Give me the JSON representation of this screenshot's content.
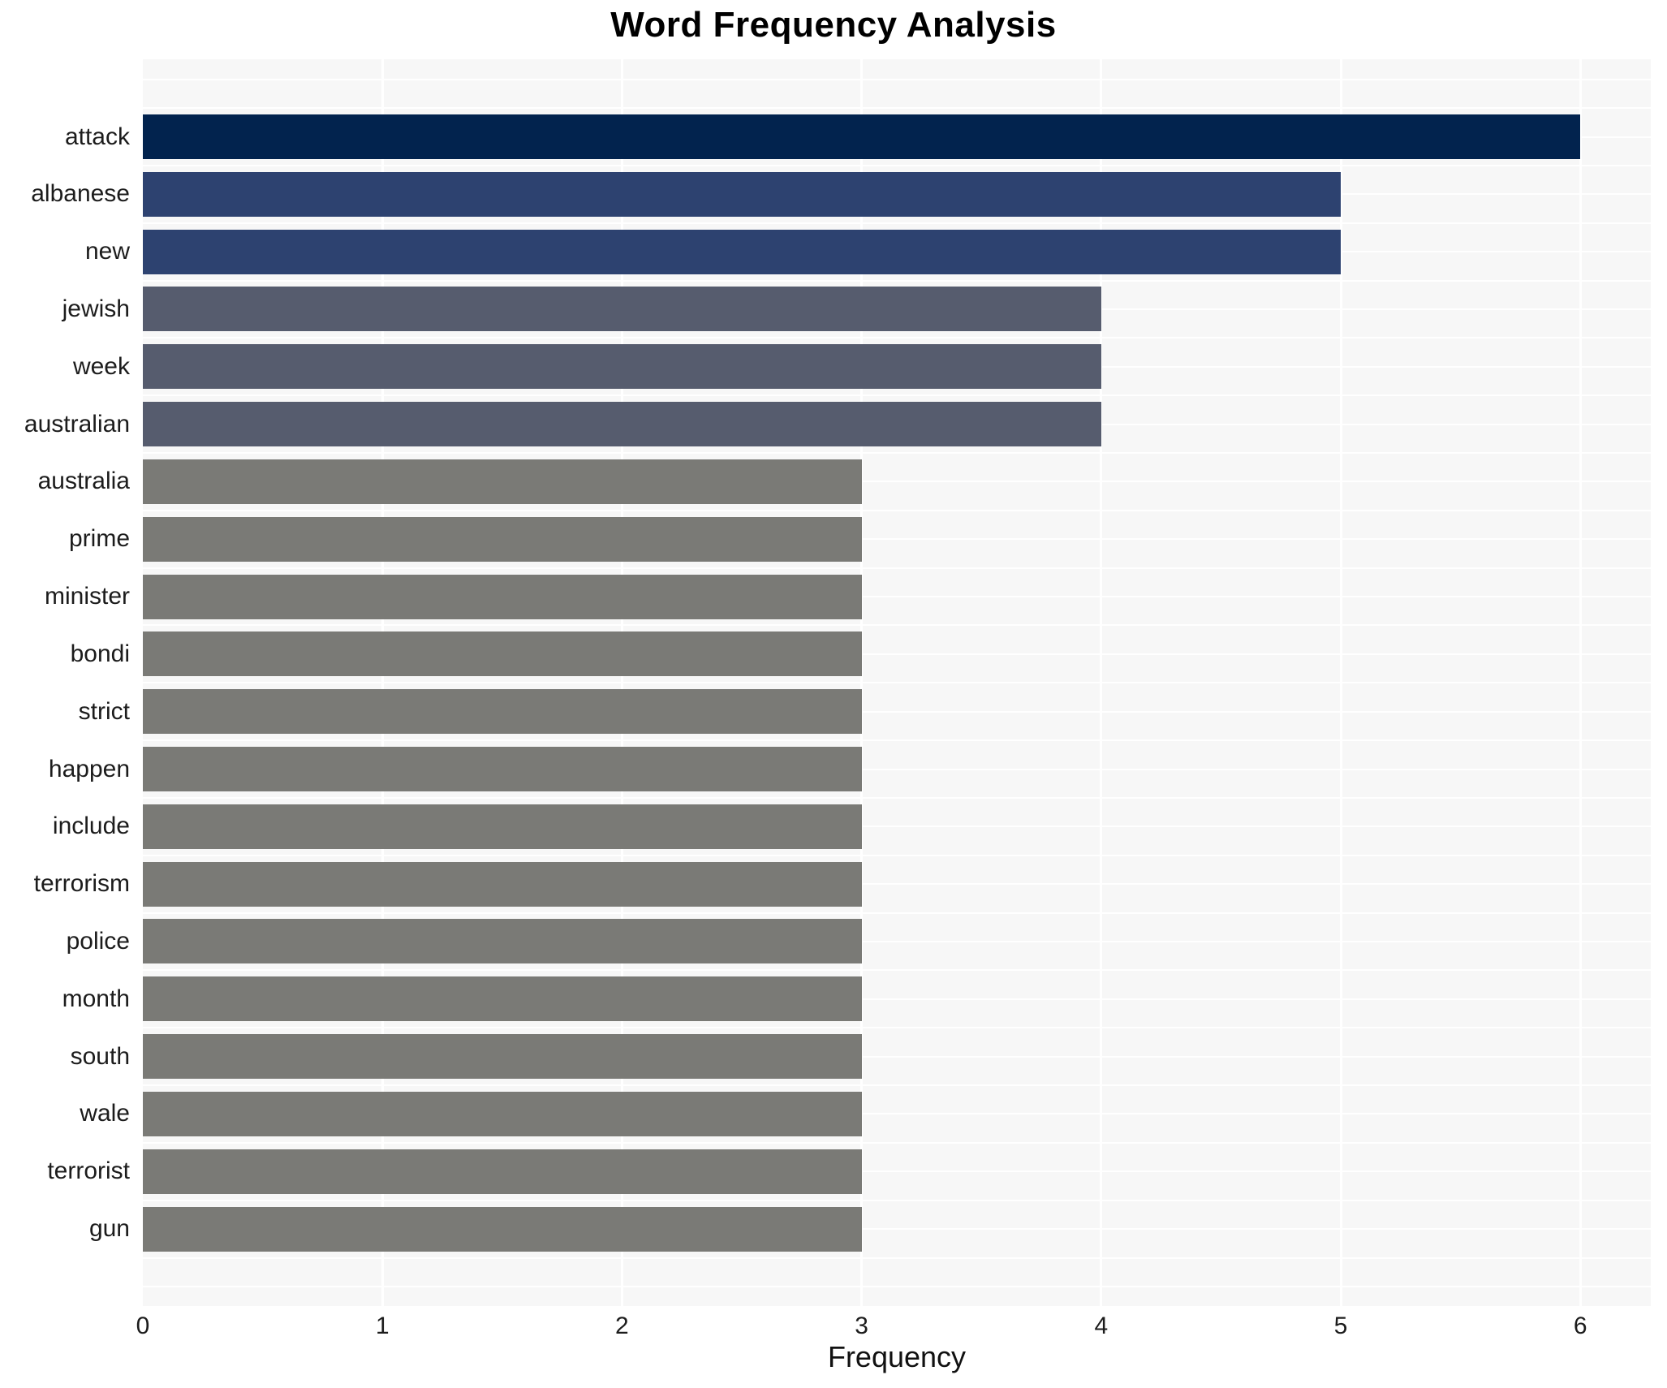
{
  "chart_data": {
    "type": "bar",
    "orientation": "horizontal",
    "title": "Word Frequency Analysis",
    "xlabel": "Frequency",
    "ylabel": "",
    "categories": [
      "attack",
      "albanese",
      "new",
      "jewish",
      "week",
      "australian",
      "australia",
      "prime",
      "minister",
      "bondi",
      "strict",
      "happen",
      "include",
      "terrorism",
      "police",
      "month",
      "south",
      "wale",
      "terrorist",
      "gun"
    ],
    "values": [
      6,
      5,
      5,
      4,
      4,
      4,
      3,
      3,
      3,
      3,
      3,
      3,
      3,
      3,
      3,
      3,
      3,
      3,
      3,
      3
    ],
    "bar_colors": [
      "#02234e",
      "#2d4270",
      "#2d4270",
      "#565c6e",
      "#565c6e",
      "#565c6e",
      "#7a7a76",
      "#7a7a76",
      "#7a7a76",
      "#7a7a76",
      "#7a7a76",
      "#7a7a76",
      "#7a7a76",
      "#7a7a76",
      "#7a7a76",
      "#7a7a76",
      "#7a7a76",
      "#7a7a76",
      "#7a7a76",
      "#7a7a76"
    ],
    "xticks": [
      "0",
      "1",
      "2",
      "3",
      "4",
      "5",
      "6"
    ],
    "xlim": [
      0,
      6.29
    ],
    "grid": true,
    "legend": false,
    "colors": {
      "value_6": "#02234e",
      "value_5": "#2d4270",
      "value_4": "#565c6e",
      "value_3": "#7a7a76",
      "plot_background": "#f7f7f7",
      "gridline": "#ffffff",
      "text": "#1c1c1c",
      "title_text": "#000000"
    }
  }
}
